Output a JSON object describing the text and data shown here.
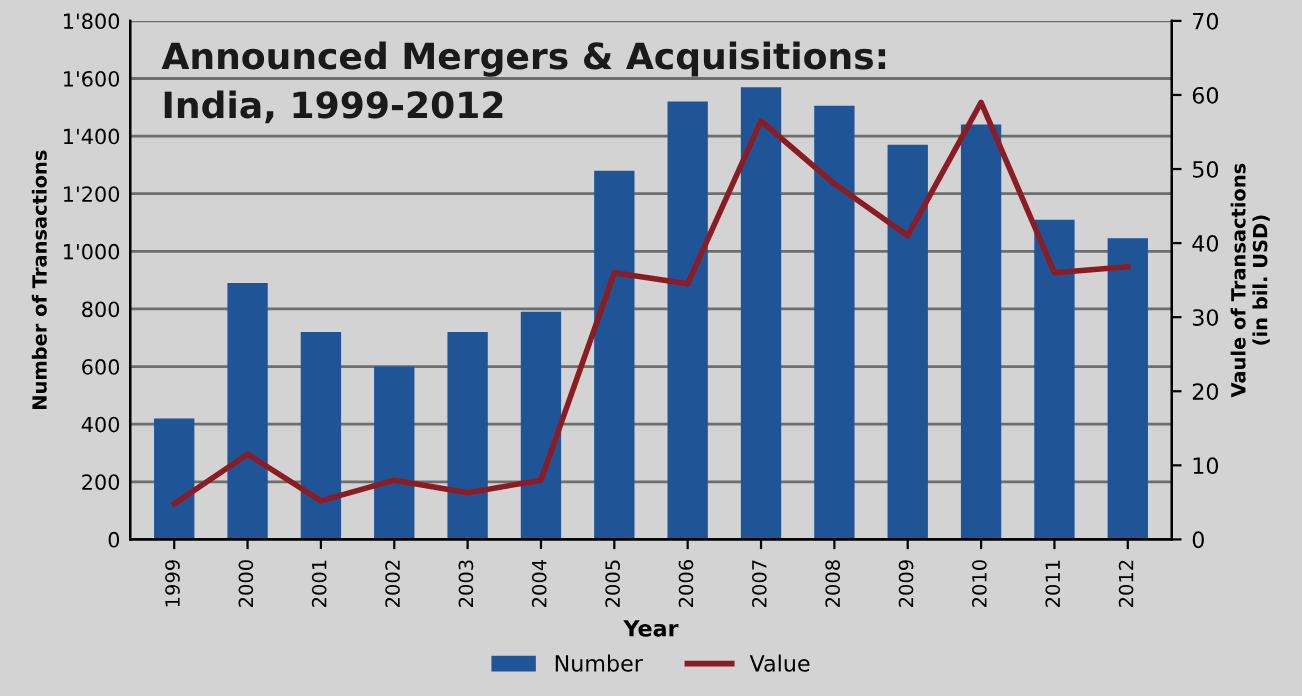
{
  "chart_data": {
    "type": "bar",
    "title": "Announced Mergers & Acquisitions:\nIndia, 1999-2012",
    "xlabel": "Year",
    "ylabel": "Number of Transactions",
    "y2label": "Vaule of Transactions\n(in bil. USD)",
    "categories": [
      "1999",
      "2000",
      "2001",
      "2002",
      "2003",
      "2004",
      "2005",
      "2006",
      "2007",
      "2008",
      "2009",
      "2010",
      "2011",
      "2012"
    ],
    "series": [
      {
        "name": "Number",
        "color": "#1f5597",
        "values": [
          420,
          890,
          720,
          600,
          720,
          790,
          1280,
          1520,
          1570,
          1505,
          1370,
          1440,
          1110,
          1045
        ]
      },
      {
        "name": "Value",
        "type": "line",
        "axis": "y2",
        "color": "#8b1c24",
        "values": [
          4.8,
          11.5,
          5.2,
          8,
          6.3,
          8,
          36,
          34.5,
          56.5,
          48,
          41,
          59,
          36,
          36.8
        ]
      }
    ],
    "ylim": [
      0,
      1800
    ],
    "yticks": [
      0,
      200,
      400,
      600,
      800,
      {
        "value": 1000,
        "label": "1'000"
      },
      {
        "value": 1200,
        "label": "1'200"
      },
      {
        "value": 1400,
        "label": "1'400"
      },
      {
        "value": 1600,
        "label": "1'600"
      },
      {
        "value": 1800,
        "label": "1'800"
      }
    ],
    "y2lim": [
      0,
      70
    ],
    "y2ticks": [
      0,
      10,
      20,
      30,
      40,
      50,
      60,
      70
    ],
    "grid": "y",
    "legend": "bottom",
    "marker": "none",
    "line_style": "solid"
  }
}
